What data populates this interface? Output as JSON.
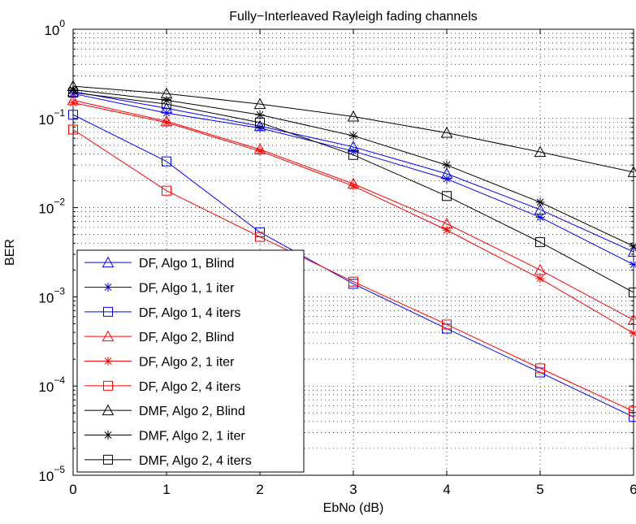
{
  "chart_data": {
    "type": "line",
    "title": "Fully−Interleaved Rayleigh fading channels",
    "xlabel": "EbNo (dB)",
    "ylabel": "BER",
    "x": [
      0,
      1,
      2,
      3,
      4,
      5,
      6
    ],
    "xlim": [
      0,
      6
    ],
    "ylim": [
      1e-05,
      1
    ],
    "yscale": "log",
    "grid": true,
    "legend_position": "bottom-left",
    "x_ticks": [
      "0",
      "1",
      "2",
      "3",
      "4",
      "5",
      "6"
    ],
    "y_ticks": [
      {
        "base": "10",
        "exp": "0"
      },
      {
        "base": "10",
        "exp": "−1"
      },
      {
        "base": "10",
        "exp": "−2"
      },
      {
        "base": "10",
        "exp": "−3"
      },
      {
        "base": "10",
        "exp": "−4"
      },
      {
        "base": "10",
        "exp": "−5"
      }
    ],
    "series": [
      {
        "name": "DF, Algo 1, Blind",
        "color": "#0000ff",
        "marker": "triangle",
        "values": [
          0.2,
          0.13,
          0.082,
          0.048,
          0.024,
          0.0095,
          0.0032
        ]
      },
      {
        "name": "DF, Algo 1, 1 iter",
        "color": "#0000ff",
        "marker": "star",
        "values": [
          0.19,
          0.115,
          0.078,
          0.043,
          0.021,
          0.0078,
          0.0023
        ]
      },
      {
        "name": "DF, Algo 1, 4 iters",
        "color": "#0000ff",
        "marker": "square",
        "values": [
          0.11,
          0.033,
          0.0053,
          0.0014,
          0.00044,
          0.000142,
          4.5e-05
        ]
      },
      {
        "name": "DF, Algo 2, Blind",
        "color": "#ff0000",
        "marker": "triangle",
        "values": [
          0.16,
          0.093,
          0.045,
          0.0185,
          0.0066,
          0.002,
          0.00055
        ]
      },
      {
        "name": "DF, Algo 2, 1 iter",
        "color": "#ff0000",
        "marker": "star",
        "values": [
          0.15,
          0.09,
          0.043,
          0.0175,
          0.0056,
          0.0016,
          0.00039
        ]
      },
      {
        "name": "DF, Algo 2, 4 iters",
        "color": "#ff0000",
        "marker": "square",
        "values": [
          0.075,
          0.0155,
          0.0047,
          0.00148,
          0.00049,
          0.000158,
          5.2e-05
        ]
      },
      {
        "name": "DMF, Algo 2, Blind",
        "color": "#000000",
        "marker": "triangle",
        "values": [
          0.23,
          0.19,
          0.145,
          0.105,
          0.069,
          0.042,
          0.025
        ]
      },
      {
        "name": "DMF, Algo 2, 1 iter",
        "color": "#000000",
        "marker": "star",
        "values": [
          0.21,
          0.16,
          0.11,
          0.064,
          0.03,
          0.0115,
          0.0037
        ]
      },
      {
        "name": "DMF, Algo 2, 4 iters",
        "color": "#000000",
        "marker": "square",
        "values": [
          0.195,
          0.145,
          0.09,
          0.039,
          0.0135,
          0.0041,
          0.00112
        ]
      }
    ]
  }
}
